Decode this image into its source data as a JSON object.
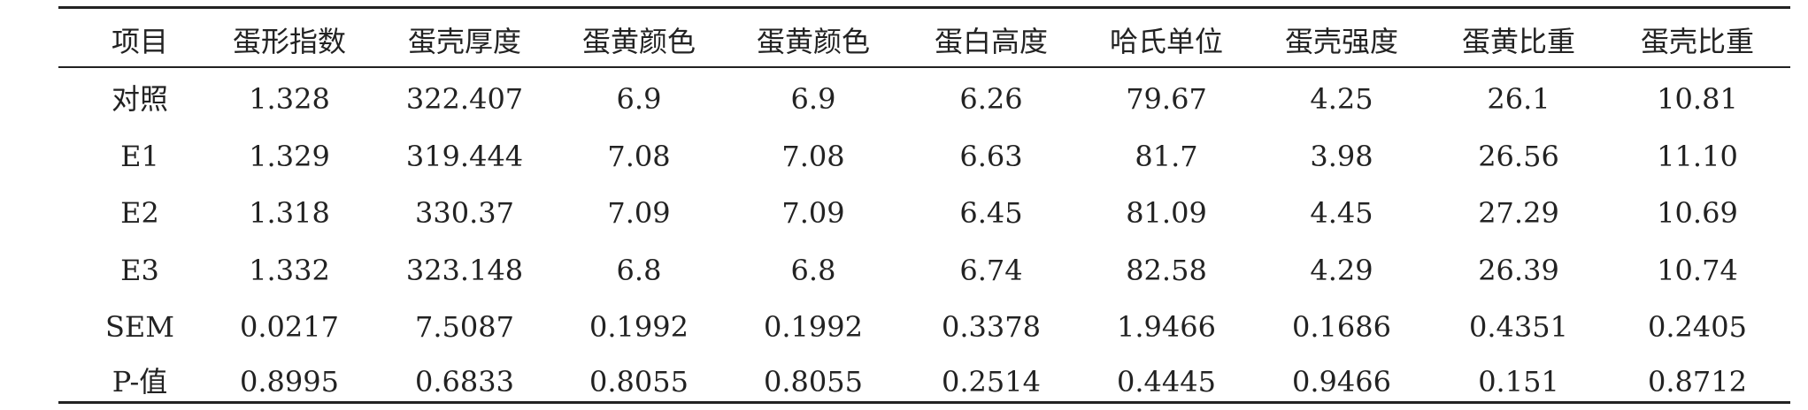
{
  "table": {
    "header": [
      "项目",
      "蛋形指数",
      "蛋壳厚度",
      "蛋黄颜色",
      "蛋黄颜色",
      "蛋白高度",
      "哈氏单位",
      "蛋壳强度",
      "蛋黄比重",
      "蛋壳比重"
    ],
    "rows": [
      [
        "对照",
        "1.328",
        "322.407",
        "6.9",
        "6.9",
        "6.26",
        "79.67",
        "4.25",
        "26.1",
        "10.81"
      ],
      [
        "E1",
        "1.329",
        "319.444",
        "7.08",
        "7.08",
        "6.63",
        "81.7",
        "3.98",
        "26.56",
        "11.10"
      ],
      [
        "E2",
        "1.318",
        "330.37",
        "7.09",
        "7.09",
        "6.45",
        "81.09",
        "4.45",
        "27.29",
        "10.69"
      ],
      [
        "E3",
        "1.332",
        "323.148",
        "6.8",
        "6.8",
        "6.74",
        "82.58",
        "4.29",
        "26.39",
        "10.74"
      ],
      [
        "SEM",
        "0.0217",
        "7.5087",
        "0.1992",
        "0.1992",
        "0.3378",
        "1.9466",
        "0.1686",
        "0.4351",
        "0.2405"
      ],
      [
        "P-值",
        "0.8995",
        "0.6833",
        "0.8055",
        "0.8055",
        "0.2514",
        "0.4445",
        "0.9466",
        "0.151",
        "0.8712"
      ]
    ]
  }
}
